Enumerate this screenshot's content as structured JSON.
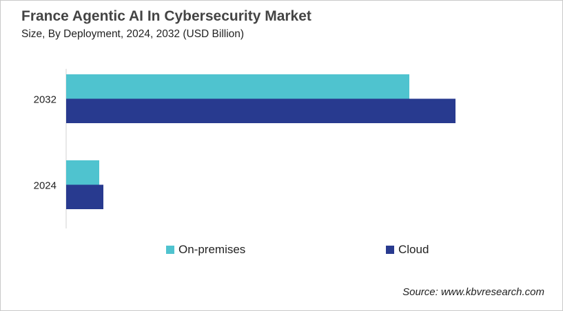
{
  "chart_data": {
    "type": "bar",
    "orientation": "horizontal",
    "title": "France Agentic AI In Cybersecurity Market",
    "subtitle": "Size, By Deployment, 2024, 2032 (USD Billion)",
    "categories": [
      "2032",
      "2024"
    ],
    "series": [
      {
        "name": "On-premises",
        "color": "#4FC3CF",
        "values": [
          4.98,
          0.48
        ]
      },
      {
        "name": "Cloud",
        "color": "#283A8F",
        "values": [
          5.65,
          0.54
        ]
      }
    ],
    "xlim": [
      0,
      6.24
    ],
    "grid": false,
    "legend": "bottom",
    "source": "Source: www.kbvresearch.com"
  }
}
